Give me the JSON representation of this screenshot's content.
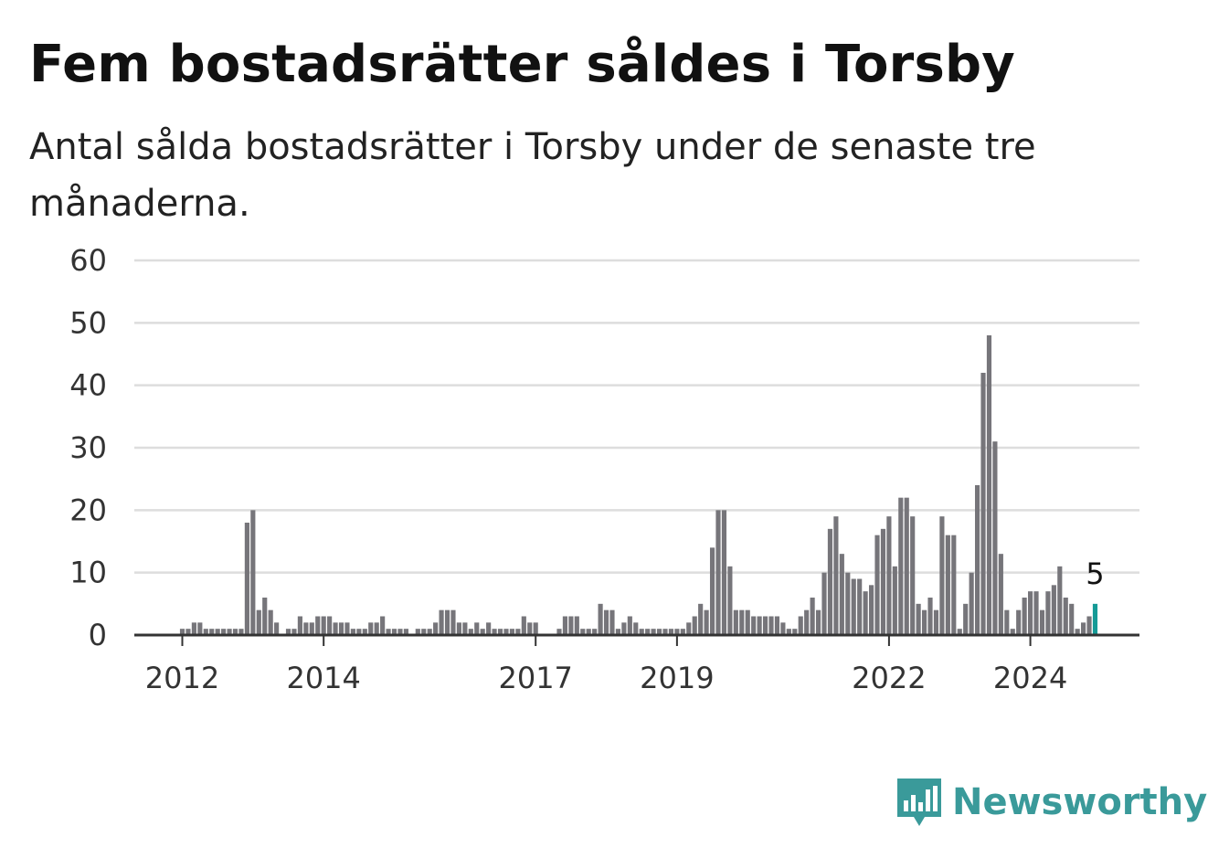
{
  "header": {
    "title": "Fem bostadsrätter såldes i Torsby",
    "subtitle": "Antal sålda bostadsrätter i Torsby under de senaste tre månaderna."
  },
  "brand": {
    "name": "Newsworthy",
    "logo_icon": "bar-chart-speech-bubble-icon",
    "color": "#3a9a9a"
  },
  "chart_data": {
    "type": "bar",
    "title": "Fem bostadsrätter såldes i Torsby",
    "subtitle": "Antal sålda bostadsrätter i Torsby under de senaste tre månaderna.",
    "xlabel": "",
    "ylabel": "",
    "ylim": [
      0,
      60
    ],
    "yticks": [
      0,
      10,
      20,
      30,
      40,
      50,
      60
    ],
    "xticks": [
      {
        "label": "2012",
        "index": 0
      },
      {
        "label": "2014",
        "index": 24
      },
      {
        "label": "2017",
        "index": 60
      },
      {
        "label": "2019",
        "index": 84
      },
      {
        "label": "2022",
        "index": 120
      },
      {
        "label": "2024",
        "index": 144
      }
    ],
    "grid": true,
    "bar_color": "#76757a",
    "highlight_color": "#159a96",
    "highlight_label": "5",
    "first_bar_index": 0,
    "values": [
      1,
      1,
      2,
      2,
      1,
      1,
      1,
      1,
      1,
      1,
      1,
      18,
      20,
      4,
      6,
      4,
      2,
      0,
      1,
      1,
      3,
      2,
      2,
      3,
      3,
      3,
      2,
      2,
      2,
      1,
      1,
      1,
      2,
      2,
      3,
      1,
      1,
      1,
      1,
      0,
      1,
      1,
      1,
      2,
      4,
      4,
      4,
      2,
      2,
      1,
      2,
      1,
      2,
      1,
      1,
      1,
      1,
      1,
      3,
      2,
      2,
      0,
      0,
      0,
      1,
      3,
      3,
      3,
      1,
      1,
      1,
      5,
      4,
      4,
      1,
      2,
      3,
      2,
      1,
      1,
      1,
      1,
      1,
      1,
      1,
      1,
      2,
      3,
      5,
      4,
      14,
      20,
      20,
      11,
      4,
      4,
      4,
      3,
      3,
      3,
      3,
      3,
      2,
      1,
      1,
      3,
      4,
      6,
      4,
      10,
      17,
      19,
      13,
      10,
      9,
      9,
      7,
      8,
      16,
      17,
      19,
      11,
      22,
      22,
      19,
      5,
      4,
      6,
      4,
      19,
      16,
      16,
      1,
      5,
      10,
      24,
      42,
      48,
      31,
      13,
      4,
      1,
      4,
      6,
      7,
      7,
      4,
      7,
      8,
      11,
      6,
      5,
      1,
      2,
      3,
      5
    ]
  }
}
